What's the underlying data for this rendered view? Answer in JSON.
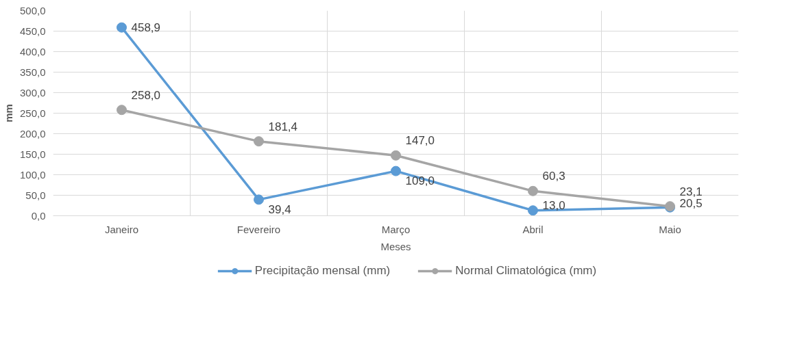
{
  "chart_data": {
    "type": "line",
    "xlabel": "Meses",
    "ylabel": "mm",
    "categories": [
      "Janeiro",
      "Fevereiro",
      "Março",
      "Abril",
      "Maio"
    ],
    "series": [
      {
        "name": "Precipitação mensal (mm)",
        "color": "#5b9bd5",
        "values": [
          458.9,
          39.4,
          109.0,
          13.0,
          20.5
        ],
        "value_labels": [
          "458,9",
          "39,4",
          "109,0",
          "13,0",
          "20,5"
        ]
      },
      {
        "name": "Normal Climatológica (mm)",
        "color": "#a5a5a5",
        "values": [
          258.0,
          181.4,
          147.0,
          60.3,
          23.1
        ],
        "value_labels": [
          "258,0",
          "181,4",
          "147,0",
          "60,3",
          "23,1"
        ]
      }
    ],
    "ylim": [
      0,
      500
    ],
    "yticks": [
      {
        "value": 0,
        "label": "0,0"
      },
      {
        "value": 50,
        "label": "50,0"
      },
      {
        "value": 100,
        "label": "100,0"
      },
      {
        "value": 150,
        "label": "150,0"
      },
      {
        "value": 200,
        "label": "200,0"
      },
      {
        "value": 250,
        "label": "250,0"
      },
      {
        "value": 300,
        "label": "300,0"
      },
      {
        "value": 350,
        "label": "350,0"
      },
      {
        "value": 400,
        "label": "400,0"
      },
      {
        "value": 450,
        "label": "450,0"
      },
      {
        "value": 500,
        "label": "500,0"
      }
    ],
    "grid": true,
    "legend": "bottom",
    "marker": "circle",
    "line_style": "solid"
  }
}
